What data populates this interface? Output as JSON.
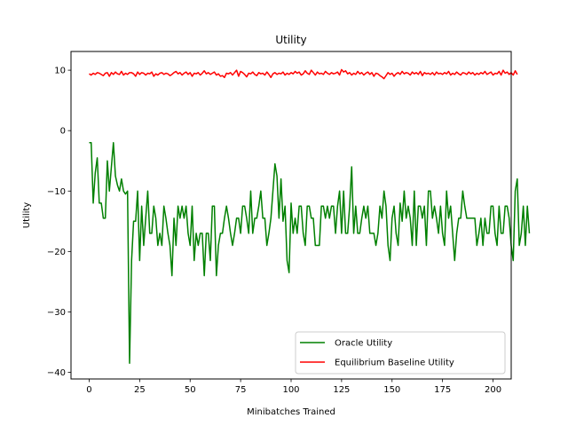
{
  "chart_data": {
    "type": "line",
    "title": "Utility",
    "xlabel": "Minibatches Trained",
    "ylabel": "Utility",
    "xlim": [
      -9,
      209
    ],
    "ylim": [
      -41.1,
      13.1
    ],
    "x_ticks": [
      0,
      25,
      50,
      75,
      100,
      125,
      150,
      175,
      200
    ],
    "x_tick_labels": [
      "0",
      "25",
      "50",
      "75",
      "100",
      "125",
      "150",
      "175",
      "200"
    ],
    "y_ticks": [
      10,
      0,
      -10,
      -20,
      -30,
      -40
    ],
    "y_tick_labels": [
      "10",
      "0",
      "−10",
      "−20",
      "−30",
      "−40"
    ],
    "grid": false,
    "legend_position": "lower-right",
    "series": [
      {
        "name": "Oracle Utility",
        "color": "#008000",
        "values": [
          -2,
          -2,
          -12,
          -7,
          -4.5,
          -12,
          -12,
          -14.5,
          -14.5,
          -5,
          -10,
          -6,
          -2,
          -7.5,
          -9,
          -10,
          -8,
          -10,
          -10.5,
          -10,
          -38.5,
          -21.5,
          -15,
          -15,
          -10,
          -21.5,
          -12.5,
          -19,
          -14.5,
          -10,
          -17,
          -17,
          -12.5,
          -14.5,
          -19,
          -17,
          -19,
          -12.5,
          -14.5,
          -17,
          -19,
          -24,
          -14.5,
          -19,
          -12.5,
          -14.5,
          -12.5,
          -14.5,
          -12.5,
          -17,
          -19,
          -12.5,
          -21.5,
          -17,
          -19,
          -17,
          -17,
          -24,
          -17,
          -17,
          -21.5,
          -12.5,
          -12.5,
          -24,
          -19,
          -17,
          -17,
          -14.5,
          -12.5,
          -14.5,
          -17,
          -19,
          -17,
          -14.5,
          -14.5,
          -17,
          -12.5,
          -12.5,
          -14.5,
          -17,
          -10,
          -17,
          -14.5,
          -14.5,
          -12.5,
          -10,
          -14.5,
          -14.5,
          -19,
          -17,
          -14.5,
          -10,
          -5.5,
          -7.5,
          -14.5,
          -8,
          -15,
          -12.5,
          -21.5,
          -23.5,
          -12,
          -17,
          -14.5,
          -17,
          -12.5,
          -12.5,
          -17,
          -19,
          -12.5,
          -12.5,
          -14.5,
          -14.5,
          -19,
          -19,
          -19,
          -12.5,
          -12.5,
          -14.5,
          -12.5,
          -14.5,
          -12.5,
          -12.5,
          -17,
          -12.5,
          -10,
          -17,
          -10,
          -17,
          -17,
          -12.5,
          -6,
          -17,
          -12.5,
          -17,
          -17,
          -14.5,
          -12.5,
          -14.5,
          -12.5,
          -17,
          -17,
          -17,
          -19,
          -17,
          -12.5,
          -14.5,
          -10,
          -12.5,
          -19,
          -21.5,
          -14.5,
          -12.5,
          -17,
          -19,
          -12,
          -15,
          -10,
          -14.5,
          -12.5,
          -14.5,
          -19,
          -10,
          -19,
          -12.5,
          -12.5,
          -14.5,
          -12.5,
          -19,
          -10,
          -10,
          -14.5,
          -12.5,
          -14.5,
          -17,
          -12.5,
          -17,
          -19,
          -10,
          -14.5,
          -12.5,
          -17,
          -21.5,
          -17,
          -14.5,
          -14.5,
          -10,
          -12.5,
          -14.5,
          -14.5,
          -14.5,
          -14.5,
          -14.5,
          -19,
          -17,
          -14.5,
          -19,
          -14.5,
          -17,
          -17,
          -12.5,
          -12.5,
          -17,
          -19,
          -12.5,
          -17,
          -17,
          -12.5,
          -12.5,
          -14.5,
          -19,
          -21.5,
          -10,
          -8,
          -19,
          -17,
          -12.5,
          -19,
          -12.5,
          -17
        ]
      },
      {
        "name": "Equilibrium Baseline Utility",
        "color": "#ff0000",
        "values": [
          9.4,
          9.2,
          9.5,
          9.3,
          9.6,
          9.5,
          9.3,
          9.1,
          9.5,
          9.6,
          9.0,
          9.6,
          9.3,
          9.7,
          9.4,
          9.3,
          9.8,
          9.2,
          9.5,
          9.3,
          9.6,
          9.6,
          9.4,
          9.0,
          9.7,
          9.3,
          9.6,
          9.5,
          9.2,
          9.5,
          9.4,
          9.7,
          9.0,
          9.4,
          9.2,
          9.5,
          9.6,
          9.3,
          9.5,
          9.4,
          9.1,
          9.3,
          9.6,
          9.8,
          9.4,
          9.6,
          9.2,
          9.5,
          9.7,
          9.3,
          9.6,
          9.0,
          9.5,
          9.4,
          9.6,
          9.2,
          9.5,
          9.9,
          9.4,
          9.6,
          9.3,
          9.5,
          9.7,
          9.2,
          9.4,
          9.0,
          9.1,
          8.8,
          9.5,
          9.4,
          9.6,
          9.2,
          9.6,
          10.0,
          9.0,
          9.8,
          9.6,
          9.3,
          8.9,
          9.5,
          9.4,
          9.7,
          9.3,
          9.1,
          9.6,
          9.4,
          9.5,
          9.2,
          9.7,
          9.3,
          8.8,
          9.4,
          9.6,
          9.3,
          9.5,
          9.4,
          9.7,
          9.2,
          9.5,
          9.3,
          9.6,
          9.4,
          9.8,
          9.5,
          9.7,
          9.2,
          9.4,
          9.9,
          9.5,
          9.3,
          10.0,
          9.6,
          9.2,
          9.7,
          9.4,
          9.5,
          9.3,
          9.8,
          9.5,
          9.3,
          9.6,
          9.4,
          9.5,
          9.7,
          9.2,
          10.1,
          9.7,
          9.9,
          9.4,
          9.6,
          9.2,
          9.5,
          9.3,
          9.8,
          9.4,
          9.6,
          9.2,
          9.5,
          9.7,
          9.3,
          9.6,
          9.0,
          9.5,
          9.4,
          9.1,
          8.9,
          8.6,
          9.1,
          9.6,
          9.3,
          9.5,
          9.0,
          9.4,
          9.6,
          9.3,
          9.8,
          9.4,
          9.6,
          9.5,
          9.2,
          9.7,
          9.4,
          9.6,
          9.3,
          9.8,
          9.1,
          9.6,
          9.4,
          9.5,
          9.3,
          9.6,
          9.2,
          9.7,
          9.4,
          9.5,
          9.3,
          9.6,
          9.4,
          9.8,
          9.2,
          9.5,
          9.3,
          9.7,
          9.4,
          9.2,
          9.6,
          9.5,
          9.3,
          9.7,
          9.4,
          9.6,
          9.2,
          9.5,
          9.3,
          9.6,
          9.4,
          9.8,
          9.3,
          9.5,
          9.7,
          9.2,
          9.5,
          9.4,
          9.8,
          9.2,
          10.0,
          9.5,
          9.7,
          9.3,
          9.6,
          9.2,
          9.9,
          9.3
        ]
      }
    ]
  }
}
